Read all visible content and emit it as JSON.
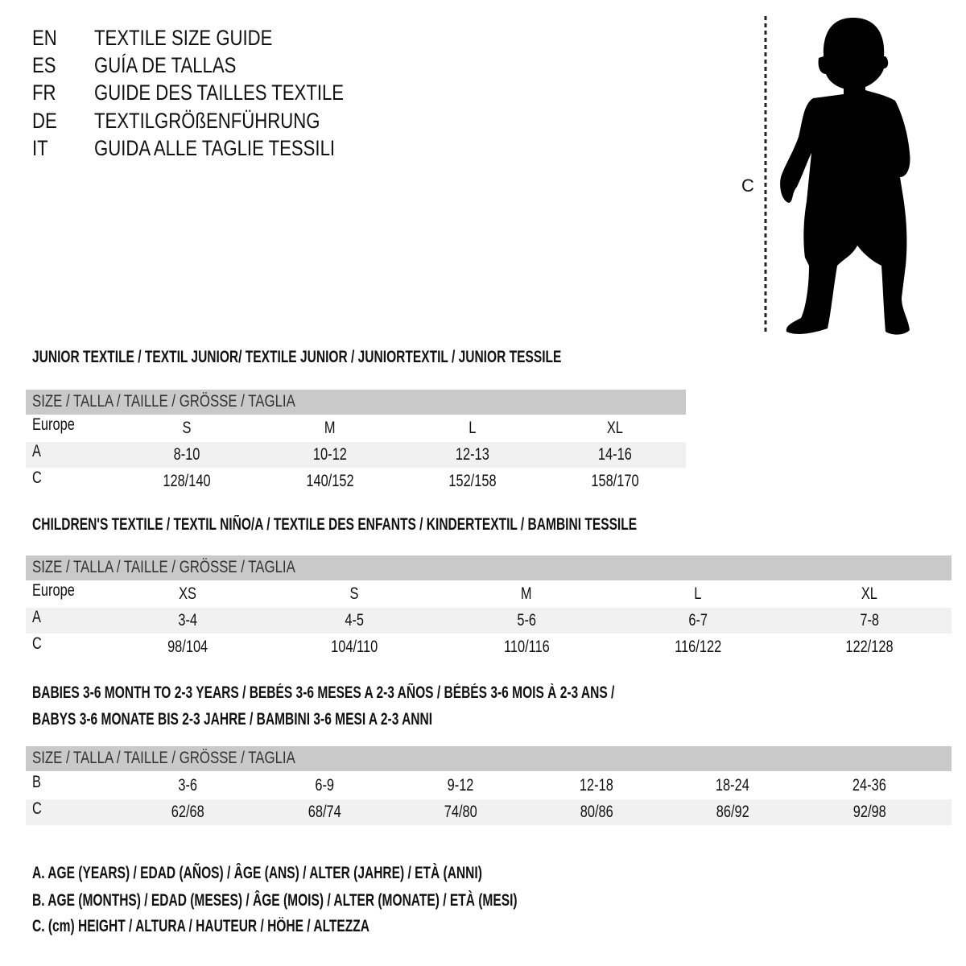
{
  "languages": [
    {
      "code": "EN",
      "title": "TEXTILE SIZE GUIDE"
    },
    {
      "code": "ES",
      "title": "GUÍA DE TALLAS"
    },
    {
      "code": "FR",
      "title": "GUIDE DES TAILLES TEXTILE"
    },
    {
      "code": "DE",
      "title": "TEXTILGRÖßENFÜHRUNG"
    },
    {
      "code": "IT",
      "title": "GUIDA ALLE TAGLIE TESSILI"
    }
  ],
  "figure": {
    "height_label": "C",
    "icon": "child-silhouette"
  },
  "colors": {
    "header_band": "#c9c9c9",
    "alt_row": "#f1f1f1",
    "text": "#111111"
  },
  "sections": [
    {
      "title_lines": [
        "JUNIOR TEXTILE / TEXTIL JUNIOR/ TEXTILE JUNIOR / JUNIORTEXTIL / JUNIOR TESSILE"
      ],
      "header": "SIZE / TALLA / TAILLE / GRÖSSE / TAGLIA",
      "rows": [
        {
          "label": "Europe",
          "values": [
            "S",
            "M",
            "L",
            "XL"
          ]
        },
        {
          "label": "A",
          "values": [
            "8-10",
            "10-12",
            "12-13",
            "14-16"
          ]
        },
        {
          "label": "C",
          "values": [
            "128/140",
            "140/152",
            "152/158",
            "158/170"
          ]
        }
      ]
    },
    {
      "title_lines": [
        "CHILDREN'S TEXTILE / TEXTIL NIÑO/A / TEXTILE DES ENFANTS / KINDERTEXTIL / BAMBINI TESSILE"
      ],
      "header": "SIZE / TALLA / TAILLE / GRÖSSE / TAGLIA",
      "rows": [
        {
          "label": "Europe",
          "values": [
            "XS",
            "S",
            "M",
            "L",
            "XL"
          ]
        },
        {
          "label": "A",
          "values": [
            "3-4",
            "4-5",
            "5-6",
            "6-7",
            "7-8"
          ]
        },
        {
          "label": "C",
          "values": [
            "98/104",
            "104/110",
            "110/116",
            "116/122",
            "122/128"
          ]
        }
      ]
    },
    {
      "title_lines": [
        "BABIES 3-6 MONTH TO 2-3 YEARS / BEBÉS 3-6 MESES A 2-3 AÑOS / BÉBÉS 3-6 MOIS À 2-3 ANS /",
        "BABYS 3-6 MONATE BIS 2-3 JAHRE / BAMBINI 3-6 MESI A 2-3 ANNI"
      ],
      "header": "SIZE / TALLA / TAILLE / GRÖSSE / TAGLIA",
      "rows": [
        {
          "label": "B",
          "values": [
            "3-6",
            "6-9",
            "9-12",
            "12-18",
            "18-24",
            "24-36"
          ]
        },
        {
          "label": "C",
          "values": [
            "62/68",
            "68/74",
            "74/80",
            "80/86",
            "86/92",
            "92/98"
          ]
        }
      ]
    }
  ],
  "legend": [
    "A. AGE (YEARS) / EDAD (AÑOS) / ÂGE (ANS) / ALTER (JAHRE) / ETÀ (ANNI)",
    "B. AGE (MONTHS) / EDAD (MESES) / ÂGE (MOIS) / ALTER (MONATE) / ETÀ (MESI)",
    "C. (cm) HEIGHT / ALTURA / HAUTEUR / HÖHE / ALTEZZA"
  ]
}
